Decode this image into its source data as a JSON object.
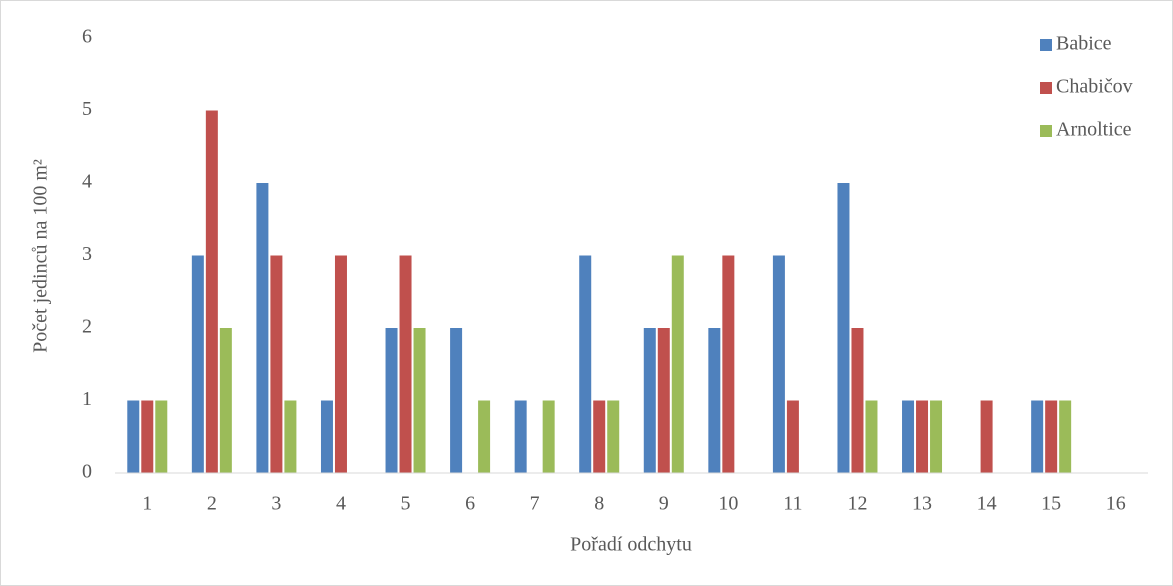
{
  "chart_data": {
    "type": "bar",
    "x_label": "Pořadí odchytu",
    "y_label": "Počet jedinců na 100 m²",
    "categories": [
      "1",
      "2",
      "3",
      "4",
      "5",
      "6",
      "7",
      "8",
      "9",
      "10",
      "11",
      "12",
      "13",
      "14",
      "15",
      "16"
    ],
    "series": [
      {
        "name": "Babice",
        "color": "#4f81bd",
        "values": [
          1,
          3,
          4,
          1,
          2,
          2,
          1,
          3,
          2,
          2,
          3,
          4,
          1,
          0,
          1,
          0
        ]
      },
      {
        "name": "Chabičov",
        "color": "#c0504d",
        "values": [
          1,
          5,
          3,
          3,
          3,
          0,
          0,
          1,
          2,
          3,
          1,
          2,
          1,
          1,
          1,
          0
        ]
      },
      {
        "name": "Arnoltice",
        "color": "#9bbb59",
        "values": [
          1,
          2,
          1,
          0,
          2,
          1,
          1,
          1,
          3,
          0,
          0,
          1,
          1,
          0,
          1,
          0
        ]
      }
    ],
    "ylim": [
      0,
      6
    ],
    "yticks": [
      0,
      1,
      2,
      3,
      4,
      5,
      6
    ],
    "grid": false,
    "legend": "top-right"
  }
}
